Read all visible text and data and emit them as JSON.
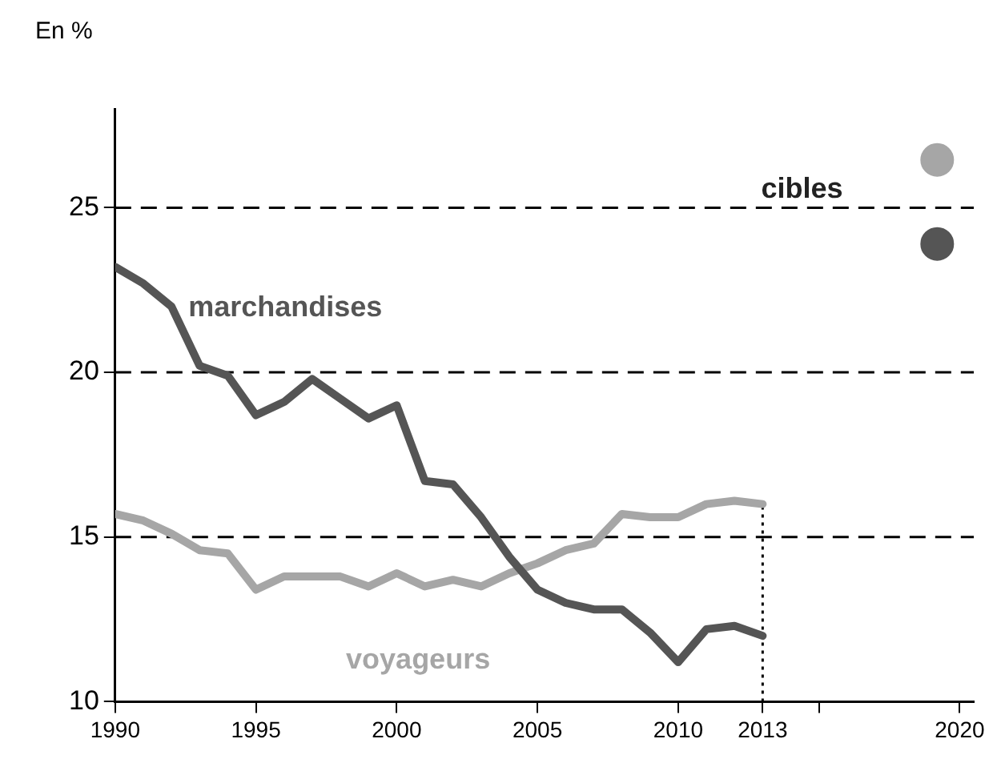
{
  "chart_data": {
    "type": "line",
    "ylabel": "En %",
    "x": [
      1990,
      1991,
      1992,
      1993,
      1994,
      1995,
      1996,
      1997,
      1998,
      1999,
      2000,
      2001,
      2002,
      2003,
      2004,
      2005,
      2006,
      2007,
      2008,
      2009,
      2010,
      2011,
      2012,
      2013
    ],
    "series": [
      {
        "name": "marchandises",
        "color": "#555555",
        "values": [
          23.2,
          22.7,
          22.0,
          20.2,
          19.9,
          18.7,
          19.1,
          19.8,
          19.2,
          18.6,
          19.0,
          16.7,
          16.6,
          15.6,
          14.4,
          13.4,
          13.0,
          12.8,
          12.8,
          12.1,
          11.2,
          12.2,
          12.3,
          12.0
        ]
      },
      {
        "name": "voyageurs",
        "color": "#a6a6a6",
        "values": [
          15.7,
          15.5,
          15.1,
          14.6,
          14.5,
          13.4,
          13.8,
          13.8,
          13.8,
          13.5,
          13.9,
          13.5,
          13.7,
          13.5,
          13.9,
          14.2,
          14.6,
          14.8,
          15.7,
          15.6,
          15.6,
          16.0,
          16.1,
          16.0
        ]
      },
      {
        "type": "scatter",
        "x": [
          2019.2,
          2019.2
        ],
        "values": [
          26.45,
          23.9
        ],
        "colors": [
          "#a6a6a6",
          "#555555"
        ],
        "marker": "circle"
      }
    ],
    "annotations": [
      "cibles"
    ],
    "ref_lines": [
      {
        "axis": "y",
        "value": 15,
        "line_style": "dashed",
        "color": "#000000"
      },
      {
        "axis": "y",
        "value": 20,
        "line_style": "dashed",
        "color": "#000000"
      },
      {
        "axis": "y",
        "value": 25,
        "line_style": "dashed",
        "color": "#000000"
      },
      {
        "axis": "x",
        "value": 2013,
        "line_style": "dotted",
        "color": "#000000"
      }
    ],
    "xlim": [
      1990,
      2020.5
    ],
    "xticks": [
      1990,
      1995,
      2000,
      2005,
      2010,
      2013,
      {
        "value": 2015,
        "label": null
      },
      2020
    ],
    "ylim": [
      10,
      28
    ],
    "yticks": [
      10,
      15,
      20,
      25
    ],
    "grid": false,
    "legend": false,
    "marker": "none",
    "line_style": "solid"
  }
}
